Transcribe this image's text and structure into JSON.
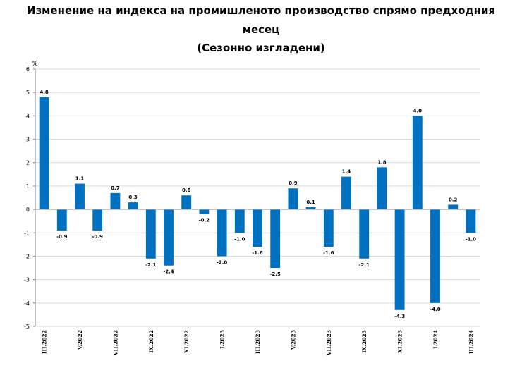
{
  "chart_data": {
    "type": "bar",
    "title_lines": [
      "Изменение на индекса на промишленото производство спрямо предходния",
      "месец",
      "(Сезонно изгладени)"
    ],
    "ylabel": "%",
    "ylim": [
      -5,
      6
    ],
    "yticks": [
      6,
      5,
      4,
      3,
      2,
      1,
      0,
      -1,
      -2,
      -3,
      -4,
      -5
    ],
    "grid": true,
    "bar_color": "#0070c0",
    "categories": [
      "III.2022",
      "IV.2022",
      "V.2022",
      "VI.2022",
      "VII.2022",
      "VIII.2022",
      "IX.2022",
      "X.2022",
      "XI.2022",
      "XII.2022",
      "I.2023",
      "II.2023",
      "III.2023",
      "IV.2023",
      "V.2023",
      "VI.2023",
      "VII.2023",
      "VIII.2023",
      "IX.2023",
      "X.2023",
      "XI.2023",
      "XII.2023",
      "I.2024",
      "II.2024",
      "III.2024"
    ],
    "shown_xlabels": [
      "III.2022",
      "V.2022",
      "VII.2022",
      "IX.2022",
      "XI.2022",
      "I.2023",
      "III.2023",
      "V.2023",
      "VII.2023",
      "IX.2023",
      "XI.2023",
      "I.2024",
      "III.2024"
    ],
    "values": [
      4.8,
      -0.9,
      1.1,
      -0.9,
      0.7,
      0.3,
      -2.1,
      -2.4,
      0.6,
      -0.2,
      -2.0,
      -1.0,
      -1.6,
      -2.5,
      0.9,
      0.1,
      -1.6,
      1.4,
      -2.1,
      1.8,
      -4.3,
      4.0,
      -4.0,
      0.2,
      -1.0
    ],
    "data_labels": [
      "4.8",
      "-0.9",
      "1.1",
      "-0.9",
      "0.7",
      "0.3",
      "-2.1",
      "-2.4",
      "0.6",
      "-0.2",
      "-2.0",
      "-1.0",
      "-1.6",
      "-2.5",
      "0.9",
      "0.1",
      "-1.6",
      "1.4",
      "-2.1",
      "1.8",
      "-4.3",
      "4.0",
      "-4.0",
      "0.2",
      "-1.0"
    ]
  }
}
